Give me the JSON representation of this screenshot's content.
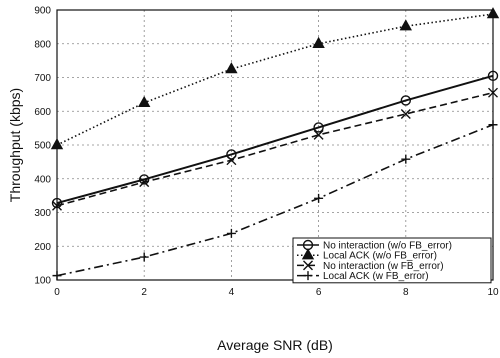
{
  "chart_data": {
    "type": "line",
    "title": "",
    "xlabel": "Average SNR (dB)",
    "ylabel": "Throughput (kbps)",
    "x": [
      0,
      2,
      4,
      6,
      8,
      10
    ],
    "xlim": [
      0,
      10
    ],
    "ylim": [
      100,
      900
    ],
    "xticks": [
      "0",
      "2",
      "4",
      "6",
      "8",
      "10"
    ],
    "yticks": [
      "100",
      "200",
      "300",
      "400",
      "500",
      "600",
      "700",
      "800",
      "900"
    ],
    "grid": true,
    "legend_position": "bottom-right",
    "series": [
      {
        "name": "No interaction (w/o FB_error)",
        "values": [
          328,
          398,
          472,
          552,
          632,
          705
        ],
        "line": "solid",
        "marker": "circle",
        "color": "#111111"
      },
      {
        "name": "Local ACK (w/o FB_error)",
        "values": [
          500,
          625,
          725,
          800,
          852,
          888
        ],
        "line": "dotted",
        "marker": "triangle",
        "color": "#111111"
      },
      {
        "name": "No interaction (w FB_error)",
        "values": [
          320,
          390,
          455,
          530,
          592,
          655
        ],
        "line": "dashed",
        "marker": "x",
        "color": "#111111"
      },
      {
        "name": "Local ACK (w FB_error)",
        "values": [
          113,
          168,
          238,
          342,
          458,
          560
        ],
        "line": "dashdot",
        "marker": "plus",
        "color": "#111111"
      }
    ]
  }
}
